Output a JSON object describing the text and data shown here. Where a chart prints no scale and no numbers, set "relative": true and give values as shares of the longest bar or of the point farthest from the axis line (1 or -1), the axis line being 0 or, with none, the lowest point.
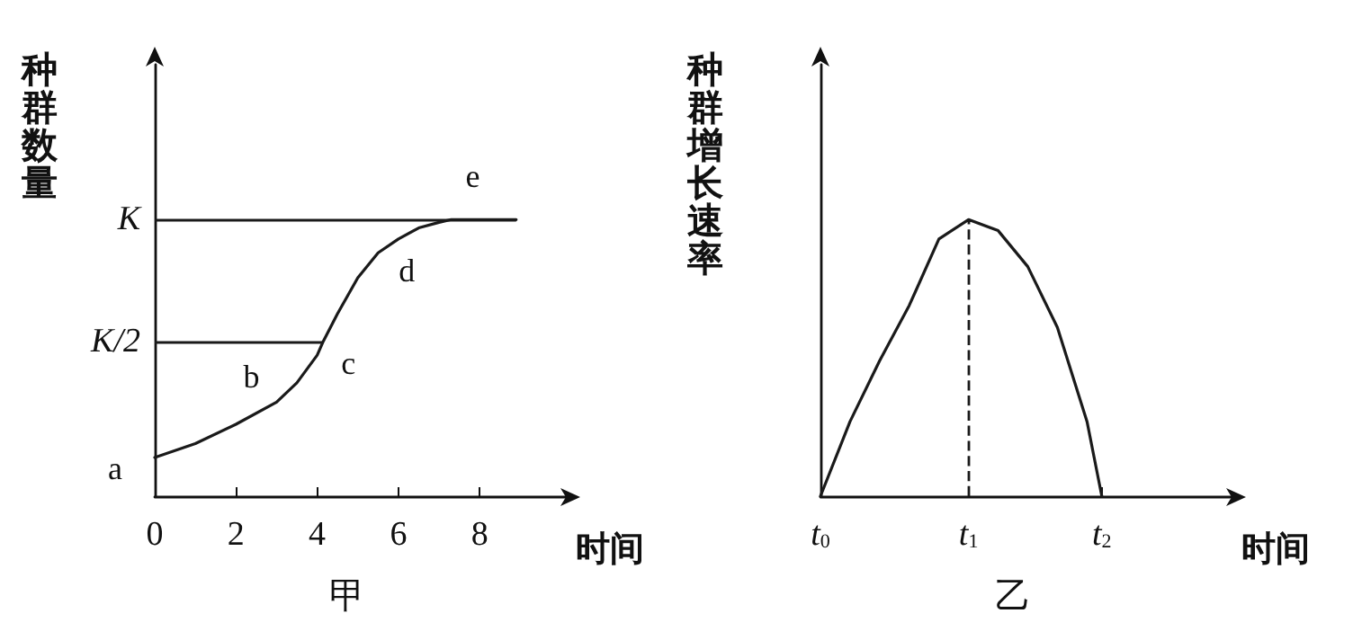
{
  "chart_data": [
    {
      "type": "line",
      "title": "甲",
      "xlabel": "时间",
      "ylabel": "种群数量",
      "relative": true,
      "xlim": [
        0,
        10.1
      ],
      "xticks": [
        0,
        2,
        4,
        6,
        8
      ],
      "grid": false,
      "marker": "none",
      "line_style": "solid",
      "color": "#1a1a1a",
      "series": [
        {
          "x": [
            0,
            1,
            2,
            3,
            3.5,
            4,
            4.15,
            4.5,
            5,
            5.5,
            6,
            6.5,
            7,
            7.3,
            8.9
          ],
          "values": [
            0.14,
            0.19,
            0.26,
            0.34,
            0.41,
            0.51,
            0.56,
            0.66,
            0.79,
            0.88,
            0.93,
            0.97,
            0.99,
            1,
            1
          ]
        }
      ],
      "ref_lines": [
        {
          "axis": "y",
          "value": 1,
          "label": "K"
        },
        {
          "axis": "y",
          "value": 0.56,
          "label": "K/2"
        }
      ],
      "annotations": [
        {
          "text": "a",
          "x": 0,
          "y": 0.14
        },
        {
          "text": "b",
          "x": 3,
          "y": 0.34
        },
        {
          "text": "c",
          "x": 4.15,
          "y": 0.56
        },
        {
          "text": "d",
          "x": 5.5,
          "y": 0.88
        },
        {
          "text": "e",
          "x": 7.3,
          "y": 1
        }
      ]
    },
    {
      "type": "line",
      "title": "乙",
      "xlabel": "时间",
      "ylabel": "种群增长速率",
      "relative": true,
      "xlim": [
        0,
        2.77
      ],
      "xticks": [
        {
          "value": 0,
          "label": "t$_{0}$"
        },
        {
          "value": 1,
          "label": "t$_{1}$"
        },
        {
          "value": 1.9,
          "label": "t$_{2}$"
        }
      ],
      "grid": false,
      "marker": "none",
      "line_style": "solid",
      "color": "#1a1a1a",
      "series": [
        {
          "x": [
            0,
            0.2,
            0.4,
            0.6,
            0.8,
            1,
            1.2,
            1.4,
            1.6,
            1.8,
            1.9
          ],
          "values": [
            0,
            0.27,
            0.49,
            0.69,
            0.93,
            1,
            0.96,
            0.83,
            0.61,
            0.27,
            0
          ]
        }
      ],
      "ref_lines": [
        {
          "axis": "x",
          "value": 1,
          "line_style": "dashed"
        }
      ]
    }
  ]
}
